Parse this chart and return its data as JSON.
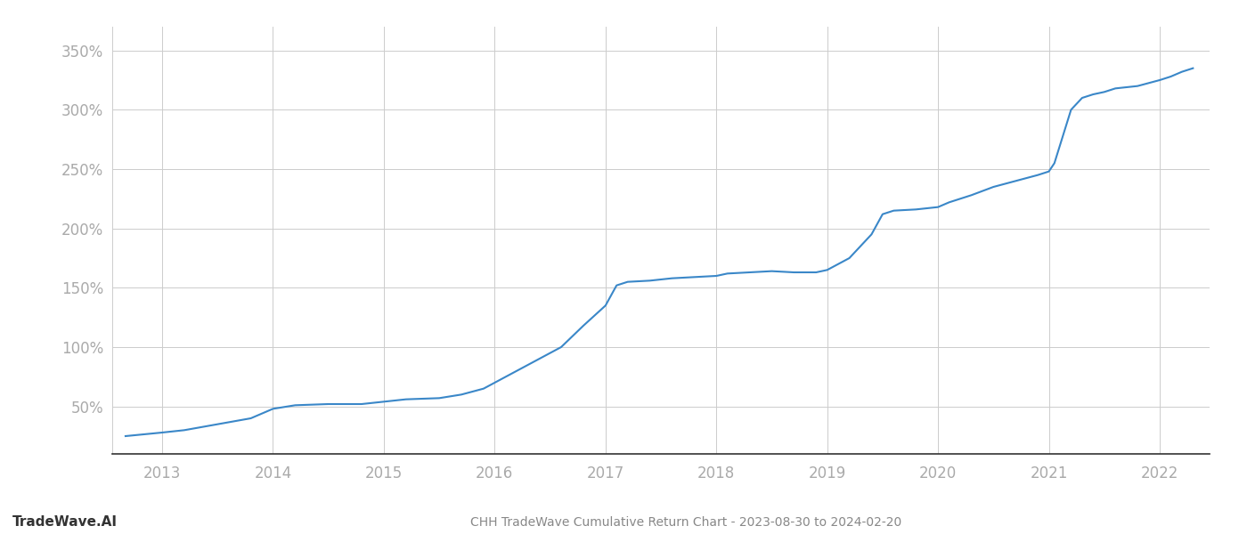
{
  "title": "CHH TradeWave Cumulative Return Chart - 2023-08-30 to 2024-02-20",
  "watermark": "TradeWave.AI",
  "line_color": "#3a87c8",
  "background_color": "#ffffff",
  "grid_color": "#cccccc",
  "x_years": [
    2013,
    2014,
    2015,
    2016,
    2017,
    2018,
    2019,
    2020,
    2021,
    2022
  ],
  "y_ticks": [
    50,
    100,
    150,
    200,
    250,
    300,
    350
  ],
  "xlim": [
    2012.55,
    2022.45
  ],
  "ylim": [
    10,
    370
  ],
  "data_points": [
    [
      2012.67,
      25
    ],
    [
      2013.0,
      28
    ],
    [
      2013.2,
      30
    ],
    [
      2013.5,
      35
    ],
    [
      2013.8,
      40
    ],
    [
      2014.0,
      48
    ],
    [
      2014.2,
      51
    ],
    [
      2014.5,
      52
    ],
    [
      2014.8,
      52
    ],
    [
      2015.0,
      54
    ],
    [
      2015.1,
      55
    ],
    [
      2015.2,
      56
    ],
    [
      2015.5,
      57
    ],
    [
      2015.7,
      60
    ],
    [
      2015.9,
      65
    ],
    [
      2016.0,
      70
    ],
    [
      2016.2,
      80
    ],
    [
      2016.4,
      90
    ],
    [
      2016.6,
      100
    ],
    [
      2016.8,
      118
    ],
    [
      2017.0,
      135
    ],
    [
      2017.1,
      152
    ],
    [
      2017.2,
      155
    ],
    [
      2017.4,
      156
    ],
    [
      2017.6,
      158
    ],
    [
      2017.8,
      159
    ],
    [
      2018.0,
      160
    ],
    [
      2018.1,
      162
    ],
    [
      2018.3,
      163
    ],
    [
      2018.5,
      164
    ],
    [
      2018.7,
      163
    ],
    [
      2018.9,
      163
    ],
    [
      2019.0,
      165
    ],
    [
      2019.2,
      175
    ],
    [
      2019.4,
      195
    ],
    [
      2019.5,
      212
    ],
    [
      2019.6,
      215
    ],
    [
      2019.8,
      216
    ],
    [
      2019.9,
      217
    ],
    [
      2020.0,
      218
    ],
    [
      2020.1,
      222
    ],
    [
      2020.3,
      228
    ],
    [
      2020.5,
      235
    ],
    [
      2020.7,
      240
    ],
    [
      2020.9,
      245
    ],
    [
      2021.0,
      248
    ],
    [
      2021.05,
      255
    ],
    [
      2021.1,
      270
    ],
    [
      2021.2,
      300
    ],
    [
      2021.3,
      310
    ],
    [
      2021.4,
      313
    ],
    [
      2021.5,
      315
    ],
    [
      2021.6,
      318
    ],
    [
      2021.8,
      320
    ],
    [
      2022.0,
      325
    ],
    [
      2022.1,
      328
    ],
    [
      2022.2,
      332
    ],
    [
      2022.3,
      335
    ]
  ]
}
